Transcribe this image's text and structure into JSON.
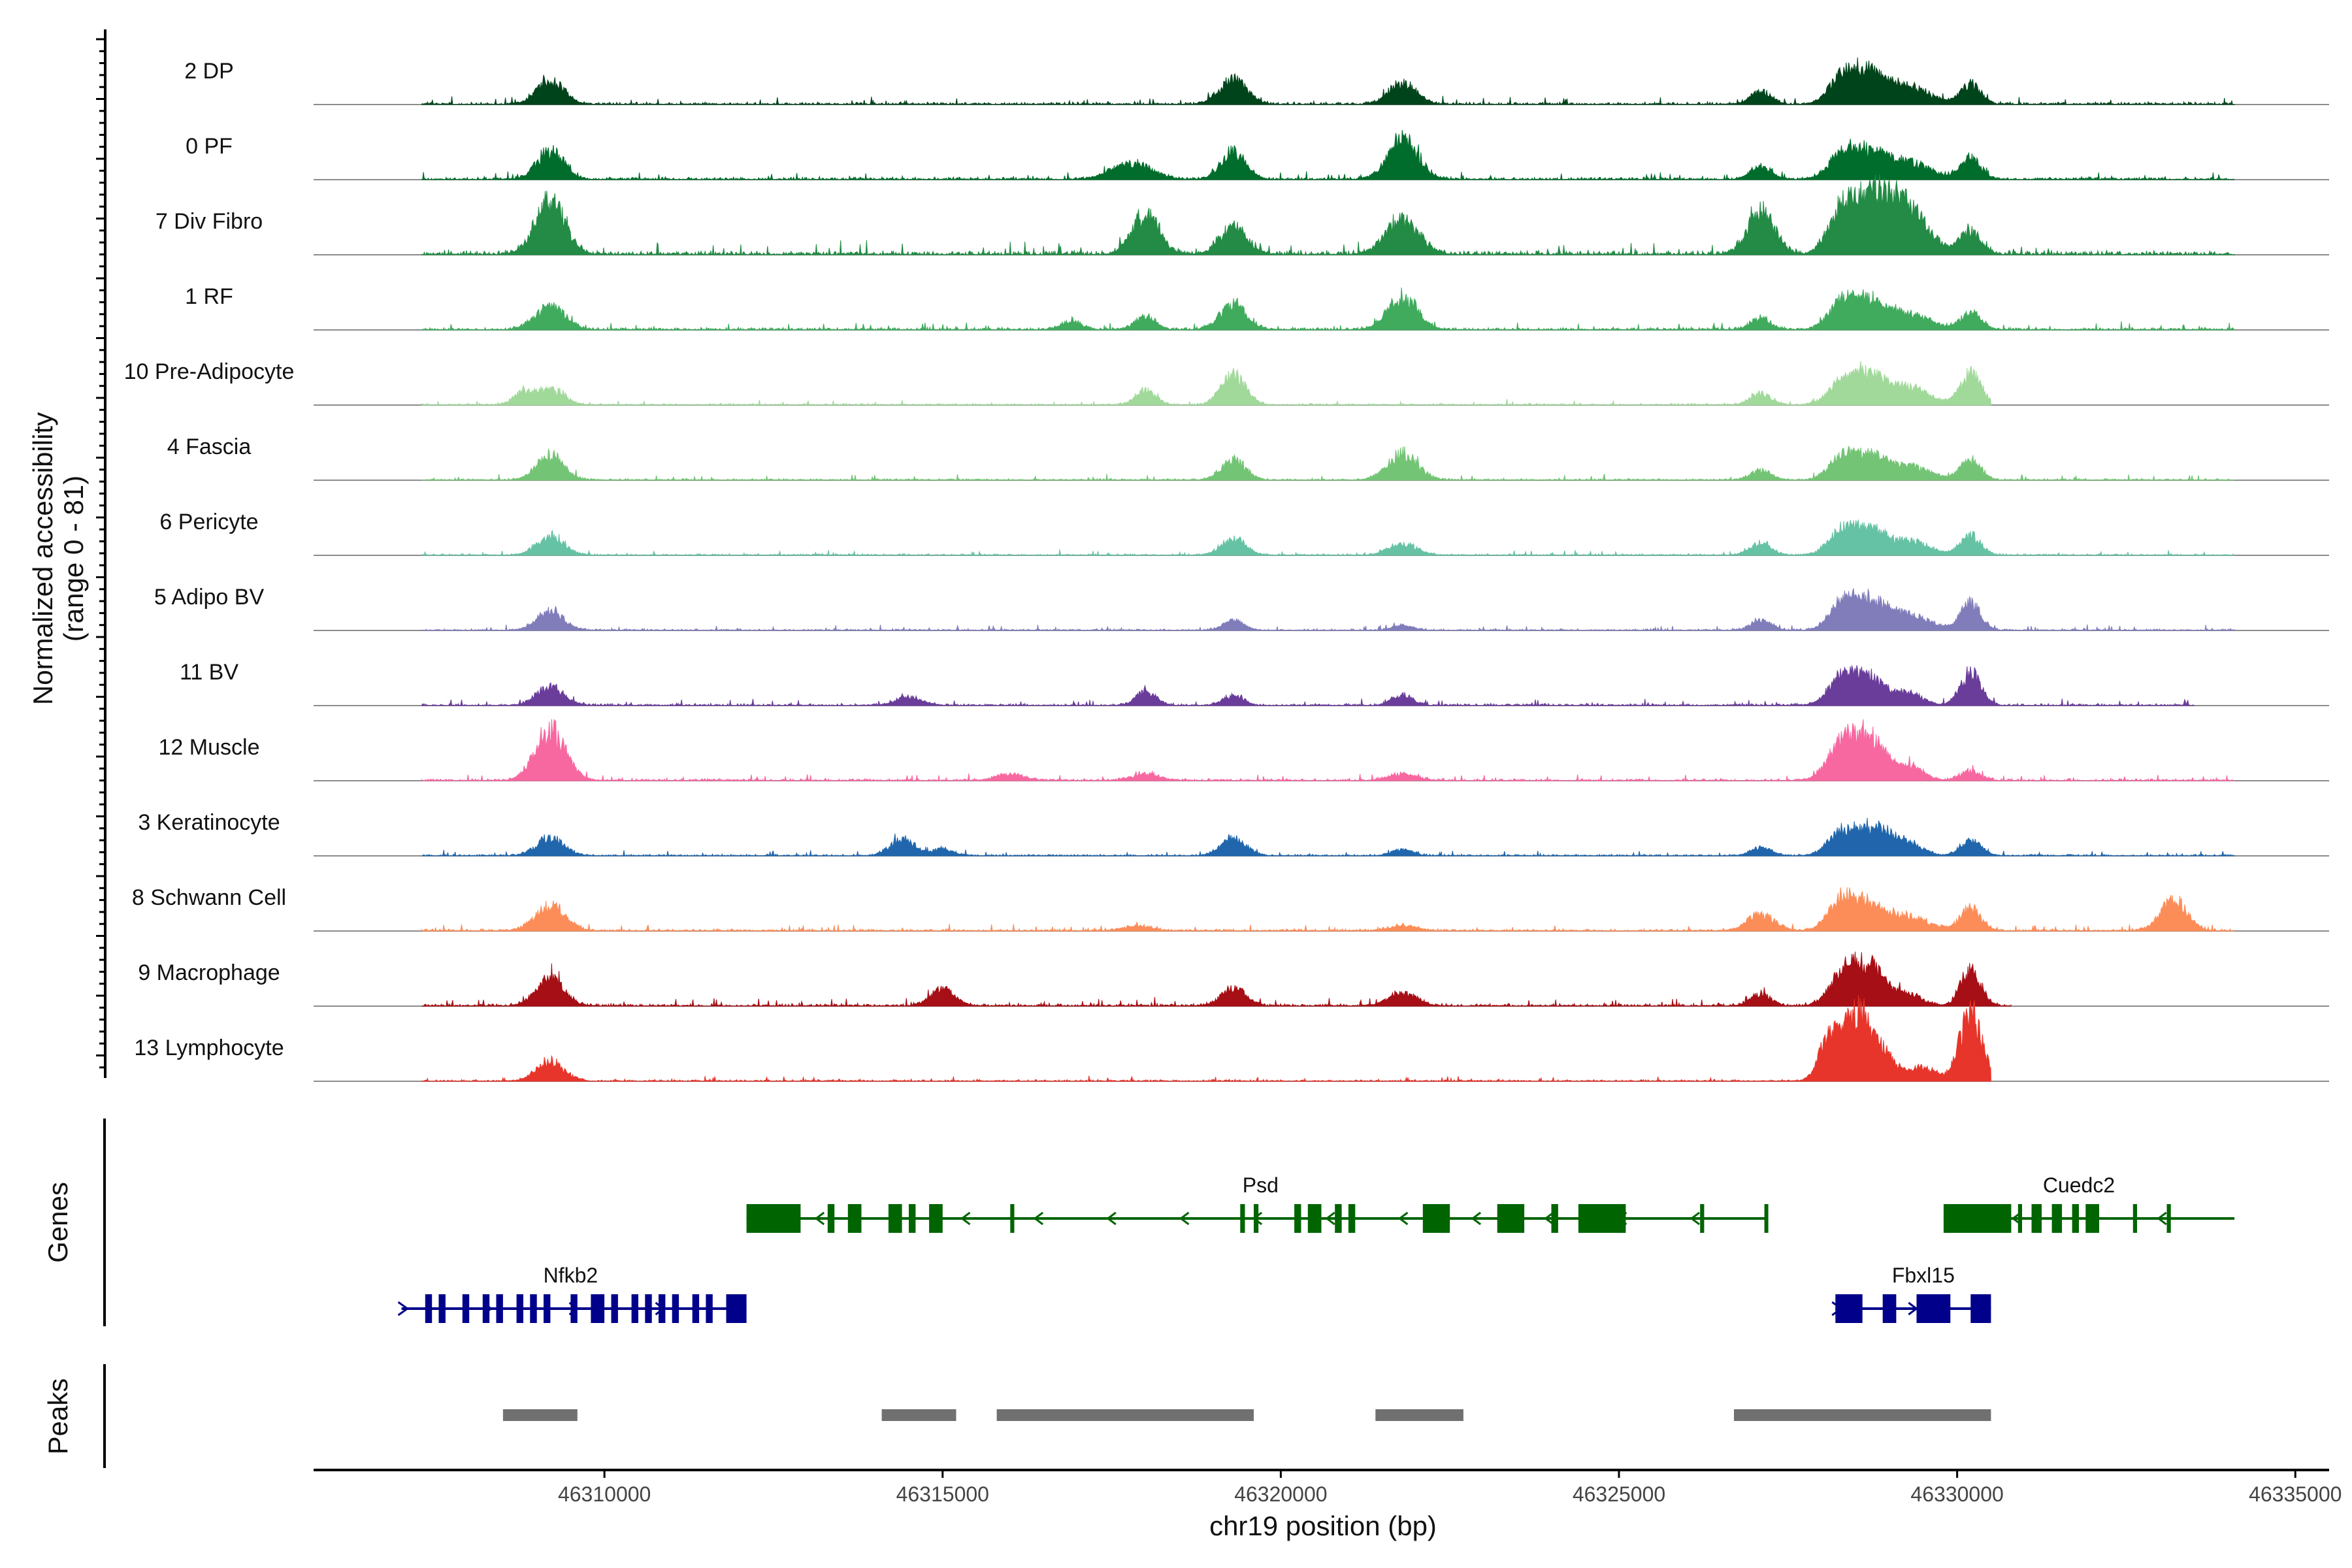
{
  "chart_data": {
    "type": "area",
    "genome": {
      "chromosome": "chr19",
      "x_range": [
        46305700,
        46335500
      ],
      "xlabel": "chr19 position (bp)",
      "x_ticks": [
        46310000,
        46315000,
        46320000,
        46325000,
        46330000,
        46335000
      ],
      "x_tick_labels": [
        "46310000",
        "46315000",
        "46320000",
        "46325000",
        "46330000",
        "46335000"
      ]
    },
    "coverage": {
      "ylabel_line1": "Normalized accessibility",
      "ylabel_line2": "(range 0 - 81)",
      "ylim": [
        0,
        81
      ],
      "tracks": [
        {
          "name": "2 DP",
          "color": "#00441b",
          "range": [
            46307300,
            46334100
          ],
          "noise": 1.8,
          "peaks": [
            [
              46309200,
              14,
              200
            ],
            [
              46319300,
              15,
              200
            ],
            [
              46321800,
              13,
              200
            ],
            [
              46327100,
              8,
              150
            ],
            [
              46328300,
              15,
              200
            ],
            [
              46328700,
              18,
              250
            ],
            [
              46329300,
              10,
              300
            ],
            [
              46330200,
              12,
              150
            ]
          ]
        },
        {
          "name": "0 PF",
          "color": "#006d2c",
          "range": [
            46307300,
            46334100
          ],
          "noise": 1.8,
          "peaks": [
            [
              46309200,
              17,
              200
            ],
            [
              46317800,
              10,
              300
            ],
            [
              46319300,
              17,
              180
            ],
            [
              46321800,
              24,
              220
            ],
            [
              46327100,
              8,
              150
            ],
            [
              46328300,
              14,
              200
            ],
            [
              46328700,
              16,
              250
            ],
            [
              46329300,
              10,
              300
            ],
            [
              46330200,
              13,
              150
            ]
          ]
        },
        {
          "name": "7 Div Fibro",
          "color": "#238b45",
          "range": [
            46307300,
            46334100
          ],
          "noise": 3.0,
          "peaks": [
            [
              46309200,
              32,
              220
            ],
            [
              46318000,
              24,
              200
            ],
            [
              46319300,
              17,
              200
            ],
            [
              46321800,
              20,
              250
            ],
            [
              46327100,
              26,
              200
            ],
            [
              46328300,
              24,
              200
            ],
            [
              46328800,
              34,
              300
            ],
            [
              46329300,
              22,
              300
            ],
            [
              46330200,
              14,
              150
            ]
          ]
        },
        {
          "name": "1 RF",
          "color": "#41ab5d",
          "range": [
            46307300,
            46334100
          ],
          "noise": 1.8,
          "peaks": [
            [
              46309200,
              14,
              220
            ],
            [
              46316900,
              5,
              150
            ],
            [
              46318000,
              8,
              150
            ],
            [
              46319300,
              15,
              200
            ],
            [
              46321800,
              20,
              220
            ],
            [
              46327100,
              7,
              150
            ],
            [
              46328300,
              15,
              200
            ],
            [
              46328700,
              16,
              250
            ],
            [
              46329300,
              9,
              300
            ],
            [
              46330200,
              10,
              150
            ]
          ]
        },
        {
          "name": "10 Pre-Adipocyte",
          "color": "#a1d99b",
          "range": [
            46307300,
            46330500
          ],
          "noise": 1.2,
          "peaks": [
            [
              46308800,
              7,
              150
            ],
            [
              46309200,
              9,
              200
            ],
            [
              46318000,
              9,
              150
            ],
            [
              46319300,
              18,
              180
            ],
            [
              46327100,
              7,
              150
            ],
            [
              46328300,
              12,
              200
            ],
            [
              46328700,
              18,
              250
            ],
            [
              46329300,
              10,
              300
            ],
            [
              46330200,
              19,
              150
            ]
          ]
        },
        {
          "name": "4 Fascia",
          "color": "#74c476",
          "range": [
            46307300,
            46334100
          ],
          "noise": 1.2,
          "peaks": [
            [
              46309200,
              15,
              200
            ],
            [
              46319300,
              12,
              180
            ],
            [
              46321800,
              16,
              220
            ],
            [
              46327100,
              6,
              150
            ],
            [
              46328300,
              12,
              200
            ],
            [
              46328700,
              14,
              250
            ],
            [
              46329300,
              8,
              300
            ],
            [
              46330200,
              12,
              150
            ]
          ]
        },
        {
          "name": "6 Pericyte",
          "color": "#66c2a4",
          "range": [
            46307300,
            46334100
          ],
          "noise": 1.2,
          "peaks": [
            [
              46309200,
              12,
              200
            ],
            [
              46319300,
              10,
              180
            ],
            [
              46321800,
              7,
              200
            ],
            [
              46327100,
              8,
              150
            ],
            [
              46328300,
              14,
              200
            ],
            [
              46328700,
              14,
              250
            ],
            [
              46329300,
              8,
              300
            ],
            [
              46330200,
              12,
              150
            ]
          ]
        },
        {
          "name": "5 Adipo BV",
          "color": "#807dba",
          "range": [
            46307300,
            46334100
          ],
          "noise": 1.2,
          "peaks": [
            [
              46309200,
              11,
              200
            ],
            [
              46319300,
              6,
              150
            ],
            [
              46321800,
              3,
              150
            ],
            [
              46327100,
              6,
              150
            ],
            [
              46328300,
              14,
              200
            ],
            [
              46328700,
              17,
              250
            ],
            [
              46329300,
              9,
              300
            ],
            [
              46330200,
              16,
              150
            ]
          ]
        },
        {
          "name": "11 BV",
          "color": "#6a3d9a",
          "range": [
            46307300,
            46333500
          ],
          "noise": 1.5,
          "peaks": [
            [
              46309200,
              11,
              200
            ],
            [
              46314500,
              5,
              200
            ],
            [
              46318000,
              8,
              150
            ],
            [
              46319300,
              6,
              150
            ],
            [
              46321800,
              6,
              150
            ],
            [
              46328300,
              16,
              200
            ],
            [
              46328700,
              16,
              250
            ],
            [
              46329300,
              7,
              200
            ],
            [
              46330200,
              20,
              150
            ]
          ]
        },
        {
          "name": "12 Muscle",
          "color": "#f768a1",
          "range": [
            46307300,
            46334100
          ],
          "noise": 1.5,
          "peaks": [
            [
              46309200,
              31,
              220
            ],
            [
              46316000,
              4,
              200
            ],
            [
              46318000,
              4,
              200
            ],
            [
              46321800,
              4,
              200
            ],
            [
              46328300,
              20,
              220
            ],
            [
              46328700,
              24,
              250
            ],
            [
              46329300,
              8,
              200
            ],
            [
              46330200,
              6,
              150
            ]
          ]
        },
        {
          "name": "3 Keratinocyte",
          "color": "#2166ac",
          "range": [
            46307300,
            46334100
          ],
          "noise": 1.2,
          "peaks": [
            [
              46309200,
              11,
              200
            ],
            [
              46314400,
              10,
              180
            ],
            [
              46315000,
              4,
              150
            ],
            [
              46319300,
              11,
              180
            ],
            [
              46321800,
              4,
              150
            ],
            [
              46327100,
              5,
              150
            ],
            [
              46328300,
              14,
              200
            ],
            [
              46328800,
              18,
              250
            ],
            [
              46329300,
              6,
              200
            ],
            [
              46330200,
              9,
              150
            ]
          ]
        },
        {
          "name": "8 Schwann Cell",
          "color": "#fc8d59",
          "range": [
            46307300,
            46334100
          ],
          "noise": 1.5,
          "peaks": [
            [
              46309200,
              15,
              220
            ],
            [
              46317900,
              3,
              200
            ],
            [
              46321800,
              3,
              200
            ],
            [
              46327100,
              10,
              200
            ],
            [
              46328300,
              18,
              200
            ],
            [
              46328700,
              14,
              250
            ],
            [
              46329300,
              8,
              300
            ],
            [
              46330200,
              14,
              150
            ],
            [
              46333200,
              18,
              200
            ]
          ]
        },
        {
          "name": "9 Macrophage",
          "color": "#a50f15",
          "range": [
            46307300,
            46330800
          ],
          "noise": 1.8,
          "peaks": [
            [
              46309200,
              18,
              200
            ],
            [
              46315000,
              10,
              180
            ],
            [
              46319300,
              11,
              180
            ],
            [
              46321800,
              8,
              200
            ],
            [
              46327100,
              7,
              150
            ],
            [
              46328300,
              16,
              200
            ],
            [
              46328700,
              24,
              250
            ],
            [
              46329300,
              6,
              200
            ],
            [
              46330200,
              21,
              150
            ]
          ]
        },
        {
          "name": "13 Lymphocyte",
          "color": "#e7352b",
          "range": [
            46307300,
            46330500
          ],
          "noise": 1.2,
          "peaks": [
            [
              46309200,
              12,
              200
            ],
            [
              46328100,
              24,
              150
            ],
            [
              46328500,
              40,
              200
            ],
            [
              46328900,
              16,
              200
            ],
            [
              46329500,
              8,
              200
            ],
            [
              46330200,
              43,
              160
            ]
          ]
        }
      ]
    },
    "genes": {
      "label": "Genes",
      "list": [
        {
          "name": "Psd",
          "strand": "-",
          "color": "#006400",
          "row": 1,
          "start": 46312100,
          "end": 46327200,
          "label_pos": 46319700,
          "exons": [
            [
              46312100,
              46312900
            ],
            [
              46313300,
              46313400
            ],
            [
              46313600,
              46313800
            ],
            [
              46314200,
              46314400
            ],
            [
              46314500,
              46314600
            ],
            [
              46314800,
              46315000
            ],
            [
              46316000,
              46316060
            ],
            [
              46319400,
              46319470
            ],
            [
              46319600,
              46319670
            ],
            [
              46320200,
              46320300
            ],
            [
              46320400,
              46320600
            ],
            [
              46320800,
              46320900
            ],
            [
              46321000,
              46321100
            ],
            [
              46322100,
              46322500
            ],
            [
              46323200,
              46323600
            ],
            [
              46324000,
              46324100
            ],
            [
              46324400,
              46325100
            ],
            [
              46326200,
              46326260
            ],
            [
              46327150,
              46327200
            ]
          ]
        },
        {
          "name": "Cuedc2",
          "strand": "-",
          "color": "#006400",
          "row": 1,
          "start": 46329800,
          "end": 46334100,
          "label_pos": 46331800,
          "exons": [
            [
              46329800,
              46330800
            ],
            [
              46330900,
              46330960
            ],
            [
              46331100,
              46331250
            ],
            [
              46331400,
              46331550
            ],
            [
              46331700,
              46331800
            ],
            [
              46331900,
              46332100
            ],
            [
              46332600,
              46332660
            ],
            [
              46333100,
              46333160
            ]
          ]
        },
        {
          "name": "Nfkb2",
          "strand": "+",
          "color": "#00008b",
          "row": 2,
          "start": 46307000,
          "end": 46312100,
          "label_pos": 46309500,
          "exons": [
            [
              46307350,
              46307450
            ],
            [
              46307550,
              46307650
            ],
            [
              46307900,
              46308000
            ],
            [
              46308200,
              46308300
            ],
            [
              46308400,
              46308500
            ],
            [
              46308700,
              46308800
            ],
            [
              46308900,
              46309000
            ],
            [
              46309100,
              46309200
            ],
            [
              46309500,
              46309600
            ],
            [
              46309800,
              46310000
            ],
            [
              46310100,
              46310200
            ],
            [
              46310400,
              46310500
            ],
            [
              46310600,
              46310700
            ],
            [
              46310800,
              46310900
            ],
            [
              46311000,
              46311100
            ],
            [
              46311300,
              46311400
            ],
            [
              46311500,
              46311600
            ],
            [
              46311800,
              46312100
            ]
          ]
        },
        {
          "name": "Fbxl15",
          "strand": "+",
          "color": "#00008b",
          "row": 2,
          "start": 46328200,
          "end": 46330500,
          "label_pos": 46329500,
          "exons": [
            [
              46328200,
              46328600
            ],
            [
              46328900,
              46329100
            ],
            [
              46329400,
              46329900
            ],
            [
              46330200,
              46330500
            ]
          ]
        }
      ]
    },
    "peaks": {
      "label": "Peaks",
      "color": "#707070",
      "intervals": [
        [
          46308500,
          46309600
        ],
        [
          46314100,
          46315200
        ],
        [
          46315800,
          46319600
        ],
        [
          46321400,
          46322700
        ],
        [
          46326700,
          46330500
        ]
      ]
    }
  }
}
